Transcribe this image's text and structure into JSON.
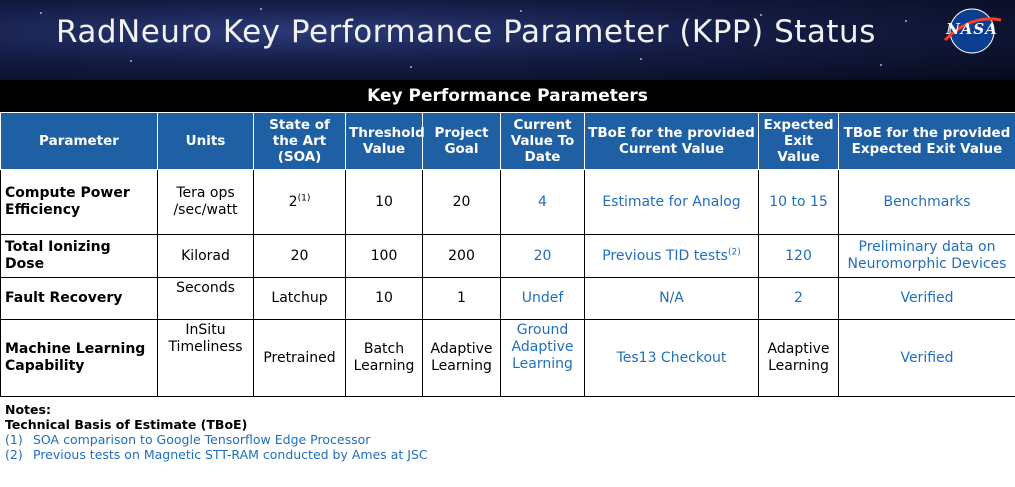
{
  "slide": {
    "title": "RadNeuro Key Performance Parameter (KPP) Status",
    "logo": "NASA"
  },
  "table": {
    "caption": "Key Performance Parameters",
    "headers": [
      "Parameter",
      "Units",
      "State of the Art (SOA)",
      "Threshold Value",
      "Project Goal",
      "Current Value To Date",
      "TBoE for the provided Current Value",
      "Expected Exit Value",
      "TBoE for the provided Expected Exit Value"
    ],
    "rows": [
      {
        "parameter": "Compute Power Efficiency",
        "units": "Tera ops /sec/watt",
        "soa": "2",
        "soa_note": "(1)",
        "threshold": "10",
        "goal": "20",
        "current": "4",
        "tboe_current": "Estimate for Analog",
        "tboe_current_note": "",
        "expected": "10 to 15",
        "tboe_expected": "Benchmarks"
      },
      {
        "parameter": "Total Ionizing Dose",
        "units": "Kilorad",
        "soa": "20",
        "soa_note": "",
        "threshold": "100",
        "goal": "200",
        "current": "20",
        "tboe_current": "Previous TID tests",
        "tboe_current_note": "(2)",
        "expected": "120",
        "tboe_expected": "Preliminary data on Neuromorphic Devices"
      },
      {
        "parameter": "Fault Recovery",
        "units": "Seconds",
        "soa": "Latchup",
        "soa_note": "",
        "threshold": "10",
        "goal": "1",
        "current": "Undef",
        "tboe_current": "N/A",
        "tboe_current_note": "",
        "expected": "2",
        "tboe_expected": "Verified"
      },
      {
        "parameter": "Machine Learning Capability",
        "units": "InSitu Timeliness",
        "soa": "Pretrained",
        "soa_note": "",
        "threshold": "Batch Learning",
        "goal": "Adaptive Learning",
        "current": "Ground Adaptive Learning",
        "tboe_current": "Tes13 Checkout",
        "tboe_current_note": "",
        "expected": "Adaptive Learning",
        "tboe_expected": "Verified"
      }
    ]
  },
  "notes": {
    "heading": "Notes:",
    "subheading": "Technical Basis of Estimate (TBoE)",
    "items": [
      {
        "num": "(1)",
        "text": "SOA comparison to Google Tensorflow Edge Processor"
      },
      {
        "num": "(2)",
        "text": "Previous tests on Magnetic STT-RAM conducted by Ames at JSC"
      }
    ]
  },
  "colors": {
    "header_blue": "#1f5fa3",
    "value_blue": "#1f6fbf",
    "banner_dark": "#070a1c"
  }
}
